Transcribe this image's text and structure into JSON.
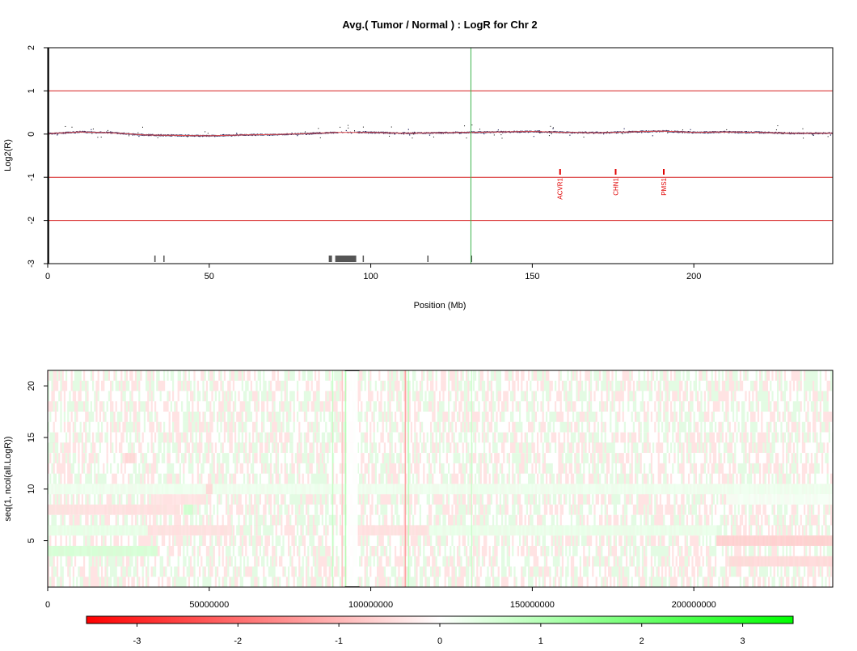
{
  "top_chart": {
    "title": "Avg.( Tumor / Normal ) : LogR for Chr 2",
    "xlabel": "Position (Mb)",
    "ylabel": "Log2(R)",
    "xlim": [
      0,
      243
    ],
    "ylim": [
      -3,
      2
    ],
    "x_ticks": [
      0,
      50,
      100,
      150,
      200
    ],
    "y_ticks": [
      -3,
      -2,
      -1,
      0,
      1,
      2
    ],
    "ref_lines_red": [
      2,
      1,
      -1,
      -2,
      -3
    ],
    "centromere_line_mb": 131,
    "left_boundary_mb": 0,
    "genes": [
      {
        "name": "ACVR1",
        "pos": 158.6
      },
      {
        "name": "CHN1",
        "pos": 175.8
      },
      {
        "name": "PMS1",
        "pos": 190.7
      }
    ],
    "gap_blocks": [
      {
        "start": 33.0,
        "end": 33.4
      },
      {
        "start": 35.8,
        "end": 36.0
      },
      {
        "start": 87.0,
        "end": 88.0
      },
      {
        "start": 89.0,
        "end": 95.5
      },
      {
        "start": 97.5,
        "end": 97.8
      },
      {
        "start": 117.5,
        "end": 117.8
      },
      {
        "start": 131.0,
        "end": 131.3
      }
    ],
    "logr_profile": {
      "x": [
        0,
        10,
        20,
        30,
        40,
        50,
        60,
        70,
        80,
        90,
        100,
        110,
        120,
        131,
        140,
        150,
        160,
        170,
        180,
        190,
        200,
        210,
        220,
        230,
        243
      ],
      "y": [
        0.02,
        0.06,
        0.04,
        -0.01,
        -0.02,
        -0.03,
        -0.01,
        0.0,
        0.02,
        0.05,
        0.05,
        0.03,
        0.04,
        0.05,
        0.06,
        0.07,
        0.05,
        0.04,
        0.06,
        0.08,
        0.05,
        0.06,
        0.05,
        0.03,
        0.03
      ]
    }
  },
  "chart_data": [
    {
      "type": "scatter",
      "title": "Avg.( Tumor / Normal ) : LogR for Chr 2",
      "xlabel": "Position (Mb)",
      "ylabel": "Log2(R)",
      "xlim": [
        0,
        243
      ],
      "ylim": [
        -3,
        2
      ],
      "x": [
        0,
        10,
        20,
        30,
        40,
        50,
        60,
        70,
        80,
        90,
        100,
        110,
        120,
        131,
        140,
        150,
        160,
        170,
        180,
        190,
        200,
        210,
        220,
        230,
        243
      ],
      "y": [
        0.02,
        0.06,
        0.04,
        -0.01,
        -0.02,
        -0.03,
        -0.01,
        0.0,
        0.02,
        0.05,
        0.05,
        0.03,
        0.04,
        0.05,
        0.06,
        0.07,
        0.05,
        0.04,
        0.06,
        0.08,
        0.05,
        0.06,
        0.05,
        0.03,
        0.03
      ],
      "annotations": [
        "ACVR1",
        "CHN1",
        "PMS1"
      ]
    },
    {
      "type": "heatmap",
      "xlabel": "",
      "ylabel": "seq(1, ncol(all.LogR))",
      "xlim": [
        0,
        243000000
      ],
      "ylim": [
        0.5,
        21.5
      ],
      "x_ticks": [
        0,
        50000000,
        100000000,
        150000000,
        200000000
      ],
      "y_ticks": [
        5,
        10,
        15,
        20
      ],
      "rows": 21,
      "color_scale": {
        "min": -3.5,
        "max": 3.5,
        "low": "#ff0000",
        "mid": "#ffffff",
        "high": "#00ff00"
      }
    }
  ],
  "heatmap": {
    "ylabel": "seq(1, ncol(all.LogR))",
    "xlim": [
      0,
      243000000
    ],
    "rows": 21,
    "x_ticks": [
      0,
      50000000,
      100000000,
      150000000,
      200000000
    ],
    "x_tick_labels": [
      "0",
      "50000000",
      "100000000",
      "150000000",
      "200000000"
    ],
    "y_ticks": [
      5,
      10,
      15,
      20
    ],
    "segments": [
      {
        "row": 4,
        "start": 0,
        "end": 34000000,
        "value": 0.6
      },
      {
        "row": 6,
        "start": 0,
        "end": 31000000,
        "value": 0.35
      },
      {
        "row": 6,
        "start": 31000000,
        "end": 57000000,
        "value": -0.45
      },
      {
        "row": 6,
        "start": 96000000,
        "end": 118000000,
        "value": -0.45
      },
      {
        "row": 6,
        "start": 118000000,
        "end": 207000000,
        "value": 0.3
      },
      {
        "row": 5,
        "start": 207000000,
        "end": 243000000,
        "value": -0.7
      },
      {
        "row": 3,
        "start": 211000000,
        "end": 243000000,
        "value": -0.55
      },
      {
        "row": 8,
        "start": 0,
        "end": 41000000,
        "value": -0.45
      },
      {
        "row": 8,
        "start": 42000000,
        "end": 45000000,
        "value": 0.7
      },
      {
        "row": 9,
        "start": 32000000,
        "end": 49000000,
        "value": -0.4
      },
      {
        "row": 10,
        "start": 0,
        "end": 243000000,
        "value": 0.25
      },
      {
        "row": 13,
        "start": 24000000,
        "end": 27000000,
        "value": -0.6
      },
      {
        "row": 9,
        "start": 210000000,
        "end": 243000000,
        "value": 0.15
      },
      {
        "row": 10,
        "start": 49000000,
        "end": 51000000,
        "value": -0.6
      }
    ],
    "vertical_stripes": [
      {
        "pos": 91000000,
        "value": -0.9
      },
      {
        "pos": 92000000,
        "value": 1.2
      },
      {
        "pos": 110500000,
        "value": -1.5
      },
      {
        "pos": 111500000,
        "value": 1.0
      },
      {
        "pos": 131000000,
        "value": 0.8
      },
      {
        "pos": 88000000,
        "value": 0.9
      }
    ],
    "gap_band": {
      "start": 92500000,
      "end": 96000000
    }
  },
  "colorbar": {
    "ticks": [
      -3,
      -2,
      -1,
      0,
      1,
      2,
      3
    ],
    "min": -3.5,
    "max": 3.5,
    "low_color": "#ff0000",
    "mid_color": "#ffffff",
    "high_color": "#00ff00"
  }
}
